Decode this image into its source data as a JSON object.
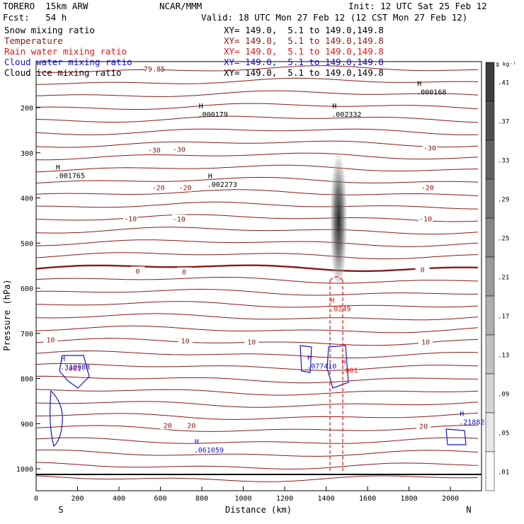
{
  "header": {
    "model": "TORERO  15km ARW",
    "center": "NCAR/MMM",
    "init": "Init: 12 UTC Sat 25 Feb 12",
    "fcst": "Fcst:   54 h",
    "valid": "Valid: 18 UTC Mon 27 Feb 12 (12 CST Mon 27 Feb 12)"
  },
  "fields": [
    {
      "name": "Snow mixing ratio",
      "xy": "XY= 149.0,  5.1 to 149.0,149.8",
      "color": "#000000"
    },
    {
      "name": "Temperature",
      "xy": "XY= 149.0,  5.1 to 149.0,149.8",
      "color": "#8b1a1a"
    },
    {
      "name": "Rain water mixing ratio",
      "xy": "XY= 149.0,  5.1 to 149.0,149.8",
      "color": "#ee1111"
    },
    {
      "name": "Cloud water mixing ratio",
      "xy": "XY= 149.0,  5.1 to 149.0,149.8",
      "color": "#1515cc"
    },
    {
      "name": "Cloud ice mixing ratio",
      "xy": "XY= 149.0,  5.1 to 149.0,149.8",
      "color": "#000000"
    }
  ],
  "chart_data": {
    "type": "contour cross-section",
    "xlabel": "Distance (km)",
    "ylabel": "Pressure (hPa)",
    "xlim": [
      0,
      2150
    ],
    "ylim": [
      1050,
      100
    ],
    "x_ticks": [
      0,
      200,
      400,
      600,
      800,
      1000,
      1200,
      1400,
      1600,
      1800,
      2000
    ],
    "y_ticks": [
      200,
      300,
      400,
      500,
      600,
      700,
      800,
      900,
      1000
    ],
    "x_end_labels": {
      "left": "S",
      "right": "N"
    },
    "colorbar": {
      "unit": "g kg⁻¹",
      "labels": [
        ".41",
        ".37",
        ".33",
        ".29",
        ".25",
        ".21",
        ".17",
        ".13",
        ".09",
        ".05",
        ".01"
      ],
      "levels": [
        0.01,
        0.05,
        0.09,
        0.13,
        0.17,
        0.21,
        0.25,
        0.29,
        0.33,
        0.37,
        0.41
      ]
    },
    "temperature_isotherm_labels": [
      {
        "text": "-79.85",
        "x": 560,
        "p": 115
      },
      {
        "text": "-30",
        "x": 570,
        "p": 295
      },
      {
        "text": "-30",
        "x": 690,
        "p": 293
      },
      {
        "text": "-30",
        "x": 1900,
        "p": 290
      },
      {
        "text": "-20",
        "x": 590,
        "p": 378
      },
      {
        "text": "-20",
        "x": 720,
        "p": 378
      },
      {
        "text": "-20",
        "x": 1890,
        "p": 378
      },
      {
        "text": "-10",
        "x": 455,
        "p": 447
      },
      {
        "text": "-10",
        "x": 690,
        "p": 448
      },
      {
        "text": "-10",
        "x": 1880,
        "p": 447
      },
      {
        "text": "0",
        "x": 490,
        "p": 563
      },
      {
        "text": "0",
        "x": 715,
        "p": 565
      },
      {
        "text": "0",
        "x": 1865,
        "p": 560
      },
      {
        "text": "10",
        "x": 70,
        "p": 715
      },
      {
        "text": "10",
        "x": 720,
        "p": 718
      },
      {
        "text": "10",
        "x": 1040,
        "p": 720
      },
      {
        "text": "10",
        "x": 1880,
        "p": 720
      },
      {
        "text": "20",
        "x": 635,
        "p": 905
      },
      {
        "text": "20",
        "x": 750,
        "p": 905
      },
      {
        "text": "20",
        "x": 1870,
        "p": 907
      }
    ],
    "maxima": [
      {
        "label": "H",
        "value": ".000168",
        "x": 1850,
        "p": 155,
        "color": "#000000"
      },
      {
        "label": "H",
        "value": ".000179",
        "x": 795,
        "p": 205,
        "color": "#000000"
      },
      {
        "label": "H",
        "value": ".002332",
        "x": 1440,
        "p": 205,
        "color": "#000000"
      },
      {
        "label": "H",
        "value": ".001765",
        "x": 105,
        "p": 340,
        "color": "#000000"
      },
      {
        "label": "H",
        "value": ".002273",
        "x": 840,
        "p": 360,
        "color": "#000000"
      },
      {
        "label": "H",
        "value": ".0249",
        "x": 1430,
        "p": 635,
        "color": "#ee1111"
      },
      {
        "label": "H",
        "value": ".077410",
        "x": 1320,
        "p": 762,
        "color": "#1515cc"
      },
      {
        "label": "H",
        "value": ".001",
        "x": 1485,
        "p": 772,
        "color": "#ee1111"
      },
      {
        "label": "H",
        "value": ".218823",
        "x": 2055,
        "p": 886,
        "color": "#1515cc"
      },
      {
        "label": "H",
        "value": ".061059",
        "x": 775,
        "p": 948,
        "color": "#1515cc"
      },
      {
        "label": "H",
        "value": ".310988",
        "x": 130,
        "p": 765,
        "color": "#1515cc"
      },
      {
        "label": "",
        "value": ".001",
        "x": 150,
        "p": 768,
        "color": "#8b1a7a"
      }
    ],
    "snow_plume": {
      "x_center": 1460,
      "p_top": 245,
      "p_bottom": 575,
      "max": 0.41
    }
  }
}
